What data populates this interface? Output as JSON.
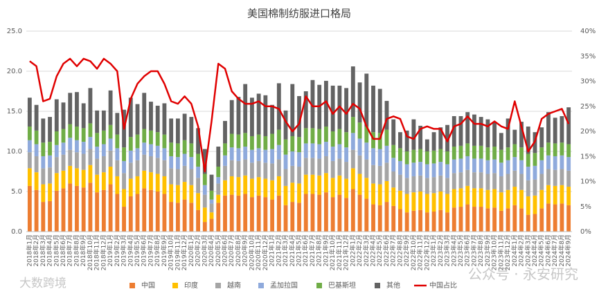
{
  "chart_data": {
    "type": "bar",
    "stacked": true,
    "title": "美国棉制纺服进口格局",
    "categories": [
      "2018年1月",
      "2018年2月",
      "2018年3月",
      "2018年4月",
      "2018年5月",
      "2018年6月",
      "2018年7月",
      "2018年8月",
      "2018年9月",
      "2018年10月",
      "2018年11月",
      "2018年12月",
      "2019年1月",
      "2019年2月",
      "2019年3月",
      "2019年4月",
      "2019年5月",
      "2019年6月",
      "2019年7月",
      "2019年8月",
      "2019年9月",
      "2019年10月",
      "2019年11月",
      "2019年12月",
      "2020年1月",
      "2020年2月",
      "2020年3月",
      "2020年4月",
      "2020年5月",
      "2020年6月",
      "2020年7月",
      "2020年8月",
      "2020年9月",
      "2020年10月",
      "2020年11月",
      "2020年12月",
      "2021年1月",
      "2021年2月",
      "2021年3月",
      "2021年4月",
      "2021年5月",
      "2021年6月",
      "2021年7月",
      "2021年8月",
      "2021年9月",
      "2021年10月",
      "2021年11月",
      "2021年12月",
      "2022年1月",
      "2022年2月",
      "2022年3月",
      "2022年4月",
      "2022年5月",
      "2022年6月",
      "2022年7月",
      "2022年8月",
      "2022年9月",
      "2022年10月",
      "2022年11月",
      "2022年12月",
      "2023年1月",
      "2023年2月",
      "2023年3月",
      "2023年4月",
      "2023年5月",
      "2023年6月",
      "2023年7月",
      "2023年8月",
      "2023年9月",
      "2023年10月",
      "2023年11月",
      "2023年12月",
      "2024年1月",
      "2024年2月",
      "2024年3月",
      "2024年4月",
      "2024年5月",
      "2024年6月",
      "2024年7月",
      "2024年8月",
      "2024年9月"
    ],
    "series": [
      {
        "name": "中国",
        "color": "#ed7d31",
        "values": [
          5.7,
          5.2,
          3.7,
          3.8,
          5.1,
          5.4,
          6.0,
          5.7,
          5.5,
          6.1,
          4.9,
          5.2,
          5.9,
          4.7,
          3.1,
          4.4,
          4.7,
          5.4,
          5.2,
          5.0,
          4.7,
          3.7,
          3.6,
          4.0,
          3.6,
          2.7,
          1.2,
          1.6,
          3.6,
          4.5,
          4.6,
          4.5,
          4.7,
          4.3,
          4.5,
          4.3,
          4.0,
          4.5,
          3.3,
          3.7,
          3.6,
          4.7,
          4.7,
          4.6,
          4.9,
          4.3,
          4.6,
          4.2,
          5.3,
          4.6,
          4.1,
          3.4,
          3.3,
          3.7,
          3.2,
          2.8,
          2.4,
          2.6,
          2.7,
          2.4,
          2.5,
          2.7,
          2.4,
          3.0,
          3.1,
          3.4,
          3.1,
          3.1,
          2.9,
          3.0,
          2.6,
          2.9,
          3.3,
          2.9,
          2.1,
          2.2,
          2.9,
          3.5,
          3.4,
          3.5,
          3.3
        ]
      },
      {
        "name": "印度",
        "color": "#ffc000",
        "values": [
          2.2,
          2.2,
          2.2,
          2.2,
          2.2,
          2.2,
          2.2,
          2.2,
          2.2,
          2.2,
          2.2,
          2.2,
          2.2,
          2.2,
          2.2,
          2.2,
          2.2,
          2.2,
          2.2,
          2.2,
          2.2,
          2.2,
          2.2,
          2.2,
          2.2,
          2.1,
          1.8,
          0.8,
          1.0,
          1.9,
          2.3,
          2.3,
          2.3,
          2.3,
          2.3,
          2.3,
          2.4,
          2.4,
          2.4,
          2.4,
          2.4,
          2.4,
          2.4,
          2.4,
          2.4,
          2.4,
          2.4,
          2.4,
          2.6,
          2.6,
          2.6,
          2.6,
          2.6,
          2.6,
          2.3,
          2.3,
          2.3,
          2.3,
          2.3,
          2.3,
          2.3,
          2.3,
          2.3,
          2.3,
          2.3,
          2.3,
          2.3,
          2.3,
          2.3,
          2.3,
          2.3,
          2.3,
          2.3,
          2.3,
          2.3,
          2.3,
          2.3,
          2.3,
          2.3,
          2.3,
          2.3
        ]
      },
      {
        "name": "越南",
        "color": "#a5a5a5",
        "values": [
          2.0,
          2.0,
          2.0,
          2.0,
          2.0,
          2.0,
          2.0,
          2.0,
          2.0,
          2.0,
          2.0,
          2.0,
          2.0,
          2.0,
          2.0,
          2.0,
          2.0,
          2.0,
          2.0,
          2.0,
          2.0,
          2.0,
          2.0,
          2.0,
          2.0,
          1.9,
          1.6,
          1.1,
          1.4,
          1.8,
          2.0,
          2.0,
          2.0,
          2.0,
          2.0,
          2.0,
          2.1,
          2.1,
          2.1,
          2.1,
          2.1,
          2.1,
          2.1,
          2.1,
          2.1,
          2.1,
          2.1,
          2.1,
          2.3,
          2.3,
          2.3,
          2.3,
          2.3,
          2.3,
          2.0,
          2.0,
          2.0,
          2.0,
          2.0,
          2.0,
          2.0,
          2.0,
          2.0,
          2.0,
          2.0,
          2.0,
          2.0,
          2.0,
          2.0,
          2.0,
          2.0,
          2.0,
          2.0,
          2.0,
          2.0,
          2.0,
          2.0,
          2.0,
          2.0,
          2.0,
          2.0
        ]
      },
      {
        "name": "孟加拉国",
        "color": "#8faadc",
        "values": [
          1.5,
          1.5,
          1.5,
          1.5,
          1.5,
          1.5,
          1.5,
          1.5,
          1.5,
          1.5,
          1.5,
          1.5,
          1.5,
          1.5,
          1.5,
          1.5,
          1.5,
          1.5,
          1.5,
          1.5,
          1.5,
          1.5,
          1.5,
          1.5,
          1.5,
          1.4,
          1.2,
          0.5,
          0.8,
          1.3,
          1.6,
          1.6,
          1.6,
          1.6,
          1.6,
          1.6,
          1.8,
          1.8,
          1.8,
          1.8,
          1.8,
          1.8,
          1.8,
          1.8,
          1.8,
          1.8,
          1.8,
          1.8,
          2.1,
          2.1,
          2.1,
          2.1,
          2.1,
          2.1,
          1.7,
          1.7,
          1.7,
          1.7,
          1.7,
          1.7,
          1.7,
          1.7,
          1.7,
          1.7,
          1.7,
          1.7,
          1.7,
          1.7,
          1.7,
          1.7,
          1.7,
          1.7,
          1.7,
          1.7,
          1.7,
          1.7,
          1.7,
          1.7,
          1.7,
          1.7,
          1.7
        ]
      },
      {
        "name": "巴基斯坦",
        "color": "#70ad47",
        "values": [
          1.7,
          1.7,
          1.7,
          1.7,
          1.7,
          1.7,
          1.7,
          1.7,
          1.7,
          1.7,
          1.7,
          1.7,
          1.7,
          1.7,
          1.7,
          1.7,
          1.7,
          1.7,
          1.7,
          1.7,
          1.7,
          1.7,
          1.7,
          1.7,
          1.7,
          1.6,
          1.4,
          1.1,
          1.3,
          1.5,
          1.7,
          1.7,
          1.7,
          1.7,
          1.7,
          1.7,
          1.9,
          1.9,
          1.9,
          1.9,
          1.9,
          1.9,
          1.9,
          1.9,
          1.9,
          1.9,
          1.9,
          1.9,
          2.0,
          2.0,
          2.0,
          2.0,
          2.0,
          2.0,
          1.6,
          1.6,
          1.6,
          1.6,
          1.6,
          1.6,
          1.6,
          1.6,
          1.6,
          1.6,
          1.6,
          1.6,
          1.6,
          1.6,
          1.6,
          1.6,
          1.6,
          1.6,
          1.6,
          1.6,
          1.6,
          1.6,
          1.6,
          1.6,
          1.6,
          1.6,
          1.6
        ]
      },
      {
        "name": "其他",
        "color": "#636363",
        "values": [
          3.6,
          3.2,
          3.0,
          3.1,
          4.0,
          3.3,
          3.9,
          4.3,
          3.1,
          4.4,
          2.8,
          2.5,
          4.3,
          2.7,
          4.7,
          4.9,
          3.8,
          4.5,
          3.6,
          3.3,
          3.9,
          3.0,
          3.1,
          3.3,
          3.3,
          3.2,
          3.1,
          2.0,
          2.5,
          2.8,
          4.2,
          4.7,
          6.1,
          4.8,
          5.1,
          5.1,
          3.6,
          5.8,
          3.6,
          6.5,
          5.1,
          4.6,
          6.0,
          5.5,
          5.7,
          5.7,
          5.4,
          5.5,
          6.3,
          5.0,
          6.6,
          5.8,
          5.5,
          3.6,
          3.2,
          2.0,
          2.6,
          3.8,
          2.9,
          1.5,
          2.3,
          2.7,
          3.3,
          3.8,
          3.7,
          3.9,
          3.9,
          3.6,
          3.5,
          3.0,
          2.1,
          3.6,
          1.8,
          3.2,
          3.4,
          2.6,
          2.5,
          3.8,
          3.2,
          3.3,
          4.6
        ]
      },
      {
        "name": "中国占比",
        "type": "line",
        "axis": "y2",
        "color": "#e00000",
        "values": [
          34,
          33,
          26,
          26.5,
          31,
          33.5,
          34.5,
          33,
          34.5,
          34,
          32.5,
          34.5,
          33.5,
          32,
          20.5,
          26.5,
          29.5,
          31,
          32,
          32,
          29.5,
          26,
          25.5,
          27,
          25.5,
          21,
          12,
          22,
          33.5,
          32.5,
          28,
          26.5,
          25.5,
          25.5,
          26,
          25,
          25,
          24.5,
          22,
          20,
          21.5,
          27,
          25,
          25,
          26,
          23.5,
          25,
          23.5,
          25.5,
          24.5,
          21,
          18.5,
          18.5,
          22.5,
          23,
          22.5,
          19,
          18.5,
          20.5,
          21,
          20.5,
          20.5,
          18,
          21,
          21.5,
          23,
          21.5,
          21.5,
          21,
          22,
          21,
          20.5,
          26,
          21,
          16,
          18,
          22.5,
          23.5,
          24,
          24.5,
          21.5
        ]
      }
    ],
    "ylim": [
      0,
      25
    ],
    "yticks": [
      {
        "value": 0,
        "label": "0.0"
      },
      {
        "value": 5,
        "label": "5.0"
      },
      {
        "value": 10,
        "label": "10.0"
      },
      {
        "value": 15,
        "label": "15.0"
      },
      {
        "value": 20,
        "label": "20.0"
      },
      {
        "value": 25,
        "label": "25.0"
      }
    ],
    "y2lim": [
      0,
      40
    ],
    "y2ticks": [
      {
        "value": 0,
        "label": "0%"
      },
      {
        "value": 5,
        "label": "5%"
      },
      {
        "value": 10,
        "label": "10%"
      },
      {
        "value": 15,
        "label": "15%"
      },
      {
        "value": 20,
        "label": "20%"
      },
      {
        "value": 25,
        "label": "25%"
      },
      {
        "value": 30,
        "label": "30%"
      },
      {
        "value": 35,
        "label": "35%"
      },
      {
        "value": 40,
        "label": "40%"
      }
    ],
    "grid": true,
    "legend": "bottom",
    "watermarks": [
      "大数跨境",
      "公众号 · 永安研究"
    ]
  }
}
